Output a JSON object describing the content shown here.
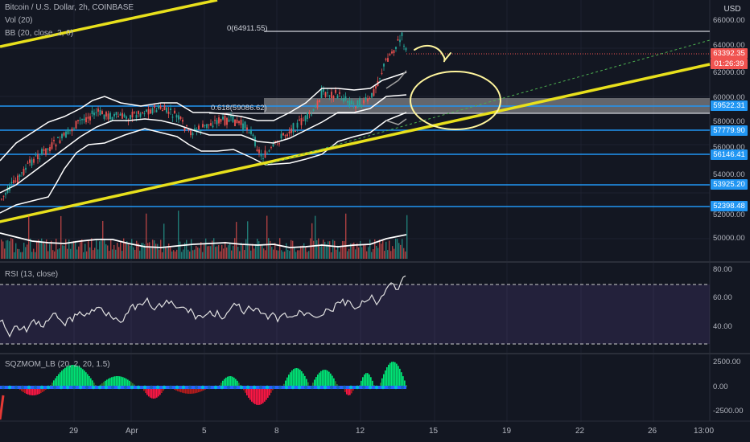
{
  "header": {
    "title": "Bitcoin / U.S. Dollar, 2h, COINBASE",
    "indicators": [
      "Vol (20)",
      "BB (20, close, 2, 0)"
    ]
  },
  "currency_button": "USD",
  "fib_levels": {
    "level_0": "0(64911.55)",
    "level_0618": "0.618(59086.62)"
  },
  "price_tags": {
    "current_price": "63392.35",
    "countdown": "01:26:39",
    "levels": [
      "59522.31",
      "57779.90",
      "56146.41",
      "53925.20",
      "52398.48"
    ]
  },
  "price_axis_labels": [
    "66000.00",
    "64000.00",
    "62000.00",
    "60000.00",
    "58000.00",
    "56000.00",
    "54000.00",
    "52000.00",
    "50000.00"
  ],
  "rsi": {
    "legend": "RSI (13, close)",
    "axis_labels": [
      "80.00",
      "60.00",
      "40.00"
    ]
  },
  "squeeze": {
    "legend": "SQZMOM_LB (20, 2, 20, 1.5)",
    "axis_labels": [
      "2500.00",
      "0.00",
      "-2500.00"
    ]
  },
  "time_axis_labels": [
    "29",
    "Apr",
    "5",
    "8",
    "12",
    "15",
    "19",
    "22",
    "26",
    "13:00"
  ],
  "colors": {
    "background": "#131722",
    "support_lines": "#2196f3",
    "trendline": "#ffeb3b",
    "current_price_tag": "#f05350",
    "rsi_band": "#7e57c2"
  }
}
